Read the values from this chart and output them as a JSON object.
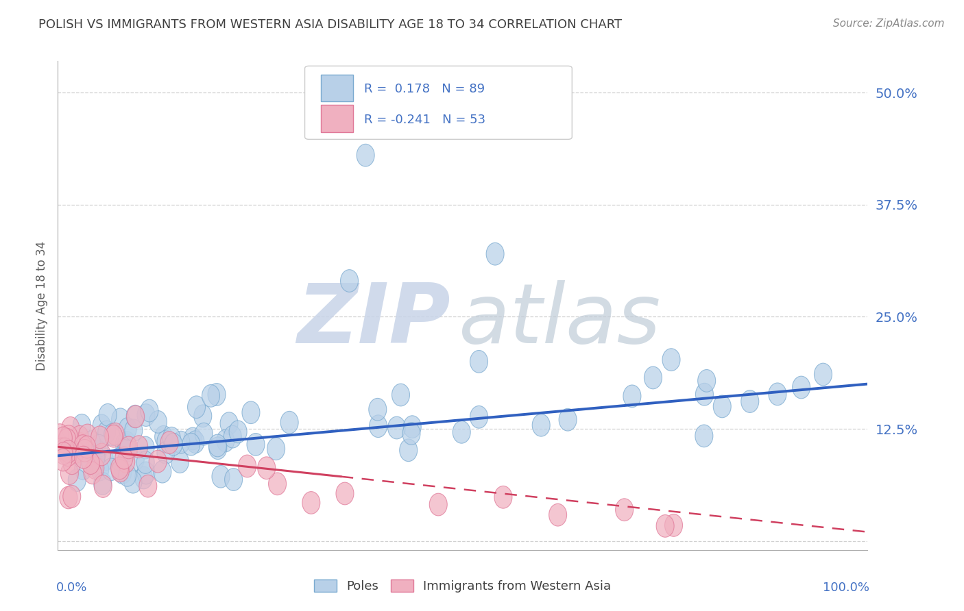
{
  "title": "POLISH VS IMMIGRANTS FROM WESTERN ASIA DISABILITY AGE 18 TO 34 CORRELATION CHART",
  "source": "Source: ZipAtlas.com",
  "ylabel": "Disability Age 18 to 34",
  "ytick_vals": [
    0.0,
    0.125,
    0.25,
    0.375,
    0.5
  ],
  "ytick_labels": [
    "",
    "12.5%",
    "25.0%",
    "37.5%",
    "50.0%"
  ],
  "xlim": [
    0.0,
    1.0
  ],
  "ylim": [
    -0.01,
    0.535
  ],
  "R_poles": "0.178",
  "N_poles": "89",
  "R_immigrants": "-0.241",
  "N_immigrants": "53",
  "poles_color": "#b8d0e8",
  "poles_edge_color": "#7aaad0",
  "immigrants_color": "#f0b0c0",
  "immigrants_edge_color": "#e07898",
  "trend_poles_color": "#3060c0",
  "trend_immigrants_color": "#d04060",
  "background_color": "#ffffff",
  "grid_color": "#cccccc",
  "title_color": "#404040",
  "axis_label_color": "#4472c4",
  "legend_label_poles": "Poles",
  "legend_label_immigrants": "Immigrants from Western Asia",
  "trend_poles_y0": 0.095,
  "trend_poles_y1": 0.175,
  "trend_immigrants_y0": 0.105,
  "trend_immigrants_y1": 0.01,
  "watermark_zip_color": "#c8d4e8",
  "watermark_atlas_color": "#c0ccd8"
}
